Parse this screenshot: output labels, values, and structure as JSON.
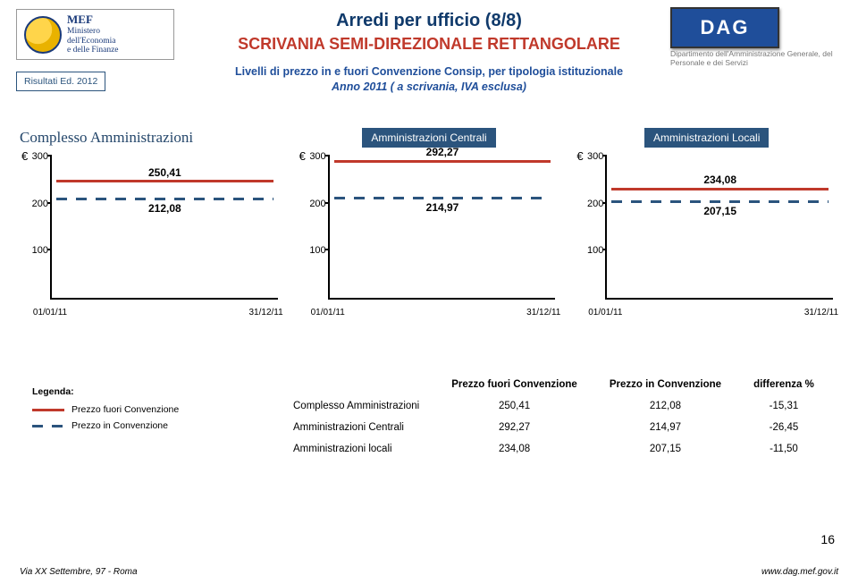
{
  "header": {
    "mef_line1": "Ministero",
    "mef_line2": "dell'Economia",
    "mef_line3": "e delle Finanze",
    "mef_initials": "MEF",
    "dag_label": "DAG",
    "dag_sub": "Dipartimento dell'Amministrazione Generale, del Personale e dei Servizi",
    "title1": "Arredi per ufficio (8/8)",
    "title2": "SCRIVANIA SEMI-DIREZIONALE RETTANGOLARE",
    "risultati": "Risultati Ed. 2012",
    "sub1": "Livelli di prezzo in e fuori Convenzione Consip, per tipologia istituzionale",
    "sub2": "Anno 2011 ( a scrivania, IVA esclusa)"
  },
  "charts": {
    "ylim": [
      0,
      300
    ],
    "yticks": [
      100,
      200,
      300
    ],
    "x_start": "01/01/11",
    "x_end": "31/12/11",
    "fuori_color": "#c0392b",
    "in_color": "#2b547d",
    "panels": [
      {
        "title": "Complesso Amministrazioni",
        "title_style": "serif",
        "fuori": 250.41,
        "in": 212.08,
        "fuori_str": "250,41",
        "in_str": "212,08"
      },
      {
        "title": "Amministrazioni Centrali",
        "title_style": "box",
        "fuori": 292.27,
        "in": 214.97,
        "fuori_str": "292,27",
        "in_str": "214,97"
      },
      {
        "title": "Amministrazioni Locali",
        "title_style": "box",
        "fuori": 234.08,
        "in": 207.15,
        "fuori_str": "234,08",
        "in_str": "207,15"
      }
    ]
  },
  "legend": {
    "title": "Legenda:",
    "fuori": "Prezzo fuori Convenzione",
    "in": "Prezzo in Convenzione"
  },
  "table": {
    "cols": [
      "",
      "Prezzo fuori Convenzione",
      "Prezzo in Convenzione",
      "differenza %"
    ],
    "rows": [
      [
        "Complesso Amministrazioni",
        "250,41",
        "212,08",
        "-15,31"
      ],
      [
        "Amministrazioni Centrali",
        "292,27",
        "214,97",
        "-26,45"
      ],
      [
        "Amministrazioni locali",
        "234,08",
        "207,15",
        "-11,50"
      ]
    ]
  },
  "footer": {
    "left": "Via XX Settembre, 97 - Roma",
    "right": "www.dag.mef.gov.it",
    "page": "16"
  },
  "euro": "€"
}
